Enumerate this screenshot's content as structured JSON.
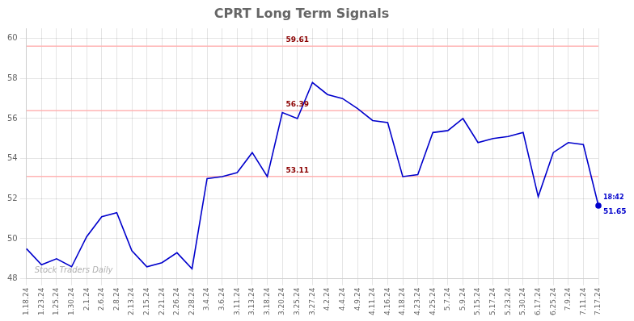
{
  "chart_data": {
    "type": "line",
    "title": "CPRT Long Term Signals",
    "categories": [
      "1.18.24",
      "1.23.24",
      "1.25.24",
      "1.30.24",
      "2.1.24",
      "2.6.24",
      "2.8.24",
      "2.13.24",
      "2.15.24",
      "2.21.24",
      "2.26.24",
      "2.28.24",
      "3.4.24",
      "3.6.24",
      "3.11.24",
      "3.13.24",
      "3.18.24",
      "3.20.24",
      "3.25.24",
      "3.27.24",
      "4.2.24",
      "4.4.24",
      "4.9.24",
      "4.11.24",
      "4.16.24",
      "4.18.24",
      "4.23.24",
      "4.25.24",
      "5.7.24",
      "5.9.24",
      "5.15.24",
      "5.17.24",
      "5.23.24",
      "5.30.24",
      "6.17.24",
      "6.25.24",
      "7.9.24",
      "7.11.24",
      "7.17.24"
    ],
    "values": [
      49.5,
      48.7,
      49.0,
      48.6,
      50.1,
      51.1,
      51.3,
      49.4,
      48.6,
      48.8,
      49.3,
      48.5,
      53.0,
      53.1,
      53.3,
      54.3,
      53.1,
      56.3,
      56.0,
      57.8,
      57.2,
      57.0,
      56.5,
      55.9,
      55.8,
      53.1,
      53.2,
      55.3,
      55.4,
      56.0,
      54.8,
      55.0,
      55.1,
      55.3,
      52.1,
      54.3,
      54.8,
      54.7,
      51.65
    ],
    "color": "#0000cc",
    "ylim": [
      48,
      60.5
    ],
    "yticks": [
      48,
      50,
      52,
      54,
      56,
      58,
      60
    ],
    "grid": true,
    "hlines": [
      {
        "value": 59.61,
        "label": "59.61",
        "x": "3.25.24",
        "color": "#ffb3b3",
        "label_color": "#8b0000"
      },
      {
        "value": 56.39,
        "label": "56.39",
        "x": "3.25.24",
        "color": "#ffb3b3",
        "label_color": "#8b0000"
      },
      {
        "value": 53.11,
        "label": "53.11",
        "x": "3.25.24",
        "color": "#ffb3b3",
        "label_color": "#8b0000"
      }
    ],
    "end_labels": [
      "18:42",
      "51.65"
    ],
    "watermark": "Stock Traders Daily"
  }
}
